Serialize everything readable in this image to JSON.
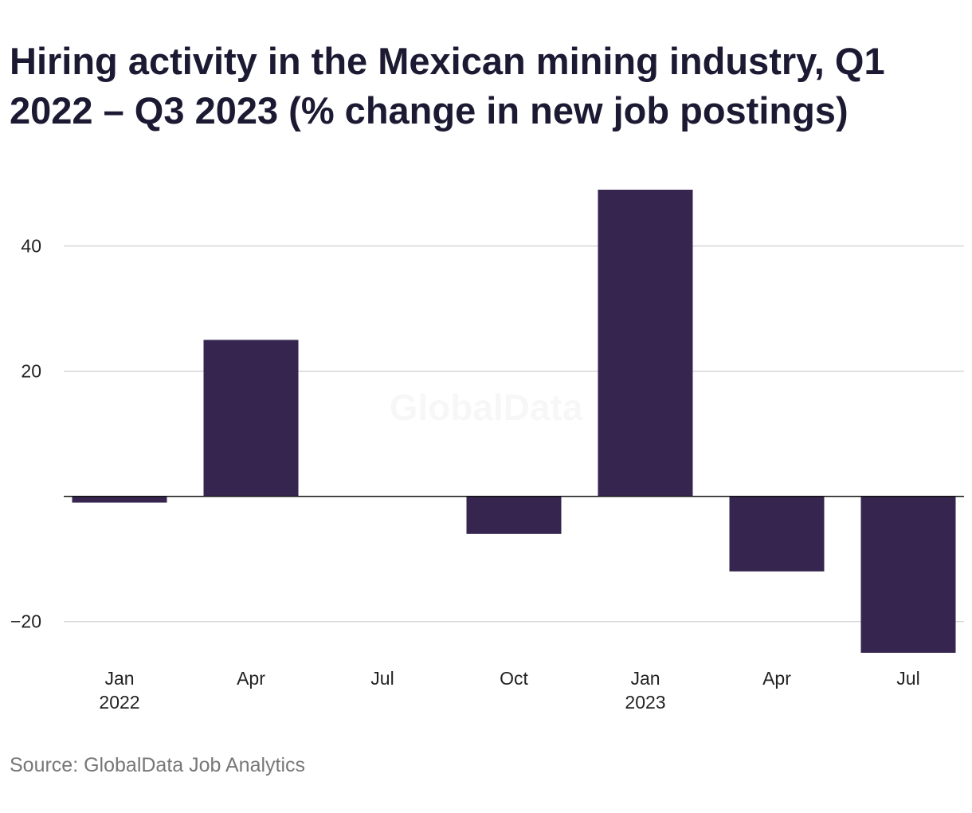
{
  "chart_data": {
    "type": "bar",
    "title": "Hiring activity in the Mexican mining industry, Q1 2022 – Q3 2023 (% change in new job postings)",
    "categories": [
      "Jan 2022",
      "Apr 2022",
      "Jul 2022",
      "Oct 2022",
      "Jan 2023",
      "Apr 2023",
      "Jul 2023"
    ],
    "x_tick_labels": [
      {
        "month": "Jan",
        "year": "2022"
      },
      {
        "month": "Apr",
        "year": ""
      },
      {
        "month": "Jul",
        "year": ""
      },
      {
        "month": "Oct",
        "year": ""
      },
      {
        "month": "Jan",
        "year": "2023"
      },
      {
        "month": "Apr",
        "year": ""
      },
      {
        "month": "Jul",
        "year": ""
      }
    ],
    "values": [
      -1,
      25,
      0,
      -6,
      49,
      -12,
      -25
    ],
    "ylim": [
      -25,
      49
    ],
    "yticks": [
      -20,
      20,
      40
    ],
    "ytick_labels": [
      "−20",
      "20",
      "40"
    ],
    "xlabel": "",
    "ylabel": "",
    "grid": true,
    "legend": "none",
    "bar_color": "#36254f",
    "watermark": "GlobalData"
  },
  "source": "Source: GlobalData Job Analytics"
}
